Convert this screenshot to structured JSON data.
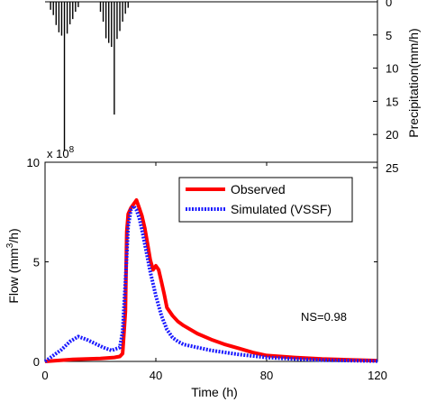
{
  "chart_data": [
    {
      "type": "bar",
      "ylabel": "Precipitation(mm/h)",
      "ylim": [
        0,
        25
      ],
      "y_inverted": true,
      "yticks": [
        "0",
        "5",
        "10",
        "15",
        "20",
        "25"
      ],
      "x": [
        2,
        3,
        4,
        5,
        6,
        7,
        8,
        9,
        10,
        11,
        12,
        20,
        21,
        22,
        23,
        24,
        25,
        26,
        27,
        28,
        29,
        30
      ],
      "values": [
        1.2,
        2,
        3.5,
        4.6,
        5.1,
        22.5,
        4.8,
        3.4,
        2.6,
        1.5,
        0.8,
        1.5,
        3,
        5.5,
        6.2,
        6.8,
        17,
        5.6,
        4.4,
        3,
        1.8,
        0.9
      ],
      "color": "#000000"
    },
    {
      "type": "line",
      "xlabel": "Time (h)",
      "ylabel": "Flow (mm³/h)",
      "ylabel_parts": [
        "Flow (mm",
        "3",
        "/h)"
      ],
      "multiplier": "x 10",
      "multiplier_exp": "8",
      "xlim": [
        0,
        120
      ],
      "ylim": [
        0,
        10
      ],
      "xticks": [
        "0",
        "40",
        "80",
        "120"
      ],
      "yticks": [
        "0",
        "5",
        "10"
      ],
      "annotation": "NS=0.98",
      "series": [
        {
          "name": "Observed",
          "color": "#ff0000",
          "x": [
            0,
            5,
            10,
            15,
            20,
            25,
            27,
            28,
            29,
            29.5,
            30,
            31,
            32,
            33,
            34,
            35,
            36,
            37,
            38,
            39,
            40,
            41,
            42,
            43,
            44,
            46,
            48,
            50,
            55,
            60,
            65,
            70,
            75,
            80,
            90,
            100,
            110,
            120
          ],
          "values": [
            0,
            0.05,
            0.1,
            0.12,
            0.15,
            0.2,
            0.25,
            0.4,
            2.5,
            6.5,
            7.4,
            7.7,
            7.9,
            8.1,
            7.7,
            7.3,
            6.7,
            5.9,
            5.1,
            4.6,
            4.8,
            4.6,
            4.0,
            3.4,
            2.7,
            2.3,
            2.0,
            1.8,
            1.4,
            1.1,
            0.85,
            0.65,
            0.45,
            0.3,
            0.2,
            0.12,
            0.08,
            0.04
          ]
        },
        {
          "name": "Simulated (VSSF)",
          "color": "#1a1aff",
          "x": [
            0,
            3,
            6,
            9,
            12,
            15,
            18,
            21,
            24,
            27,
            28,
            29,
            30,
            31,
            32,
            33,
            34,
            35,
            36,
            37,
            38,
            40,
            42,
            44,
            46,
            48,
            50,
            55,
            60,
            70,
            80,
            90,
            100,
            110,
            120
          ],
          "values": [
            0,
            0.3,
            0.6,
            1.0,
            1.25,
            1.1,
            0.9,
            0.7,
            0.55,
            0.7,
            1.5,
            4.0,
            6.8,
            7.6,
            7.8,
            7.6,
            7.2,
            6.6,
            5.9,
            5.2,
            4.5,
            3.3,
            2.3,
            1.6,
            1.2,
            1.0,
            0.85,
            0.7,
            0.55,
            0.35,
            0.2,
            0.12,
            0.07,
            0.04,
            0.02
          ]
        }
      ],
      "legend_position": "top-right"
    }
  ]
}
